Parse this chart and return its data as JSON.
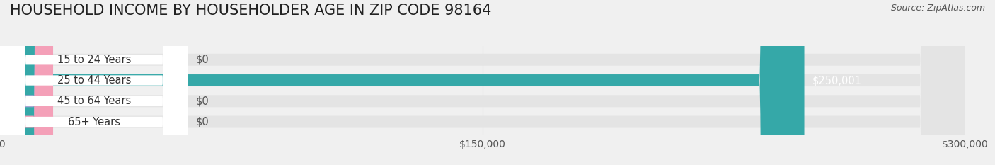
{
  "title": "HOUSEHOLD INCOME BY HOUSEHOLDER AGE IN ZIP CODE 98164",
  "source": "Source: ZipAtlas.com",
  "categories": [
    "15 to 24 Years",
    "25 to 44 Years",
    "45 to 64 Years",
    "65+ Years"
  ],
  "values": [
    0,
    250001,
    0,
    0
  ],
  "bar_colors": [
    "#d4a8c7",
    "#35a8a8",
    "#a8a8d4",
    "#f4a0b8"
  ],
  "background_color": "#f0f0f0",
  "bar_bg_color": "#e4e4e4",
  "xlim": [
    0,
    300000
  ],
  "xticks": [
    0,
    150000,
    300000
  ],
  "xtick_labels": [
    "$0",
    "$150,000",
    "$300,000"
  ],
  "value_labels": [
    "$0",
    "$250,001",
    "$0",
    "$0"
  ],
  "title_fontsize": 15,
  "label_fontsize": 10.5,
  "tick_fontsize": 10,
  "source_fontsize": 9
}
